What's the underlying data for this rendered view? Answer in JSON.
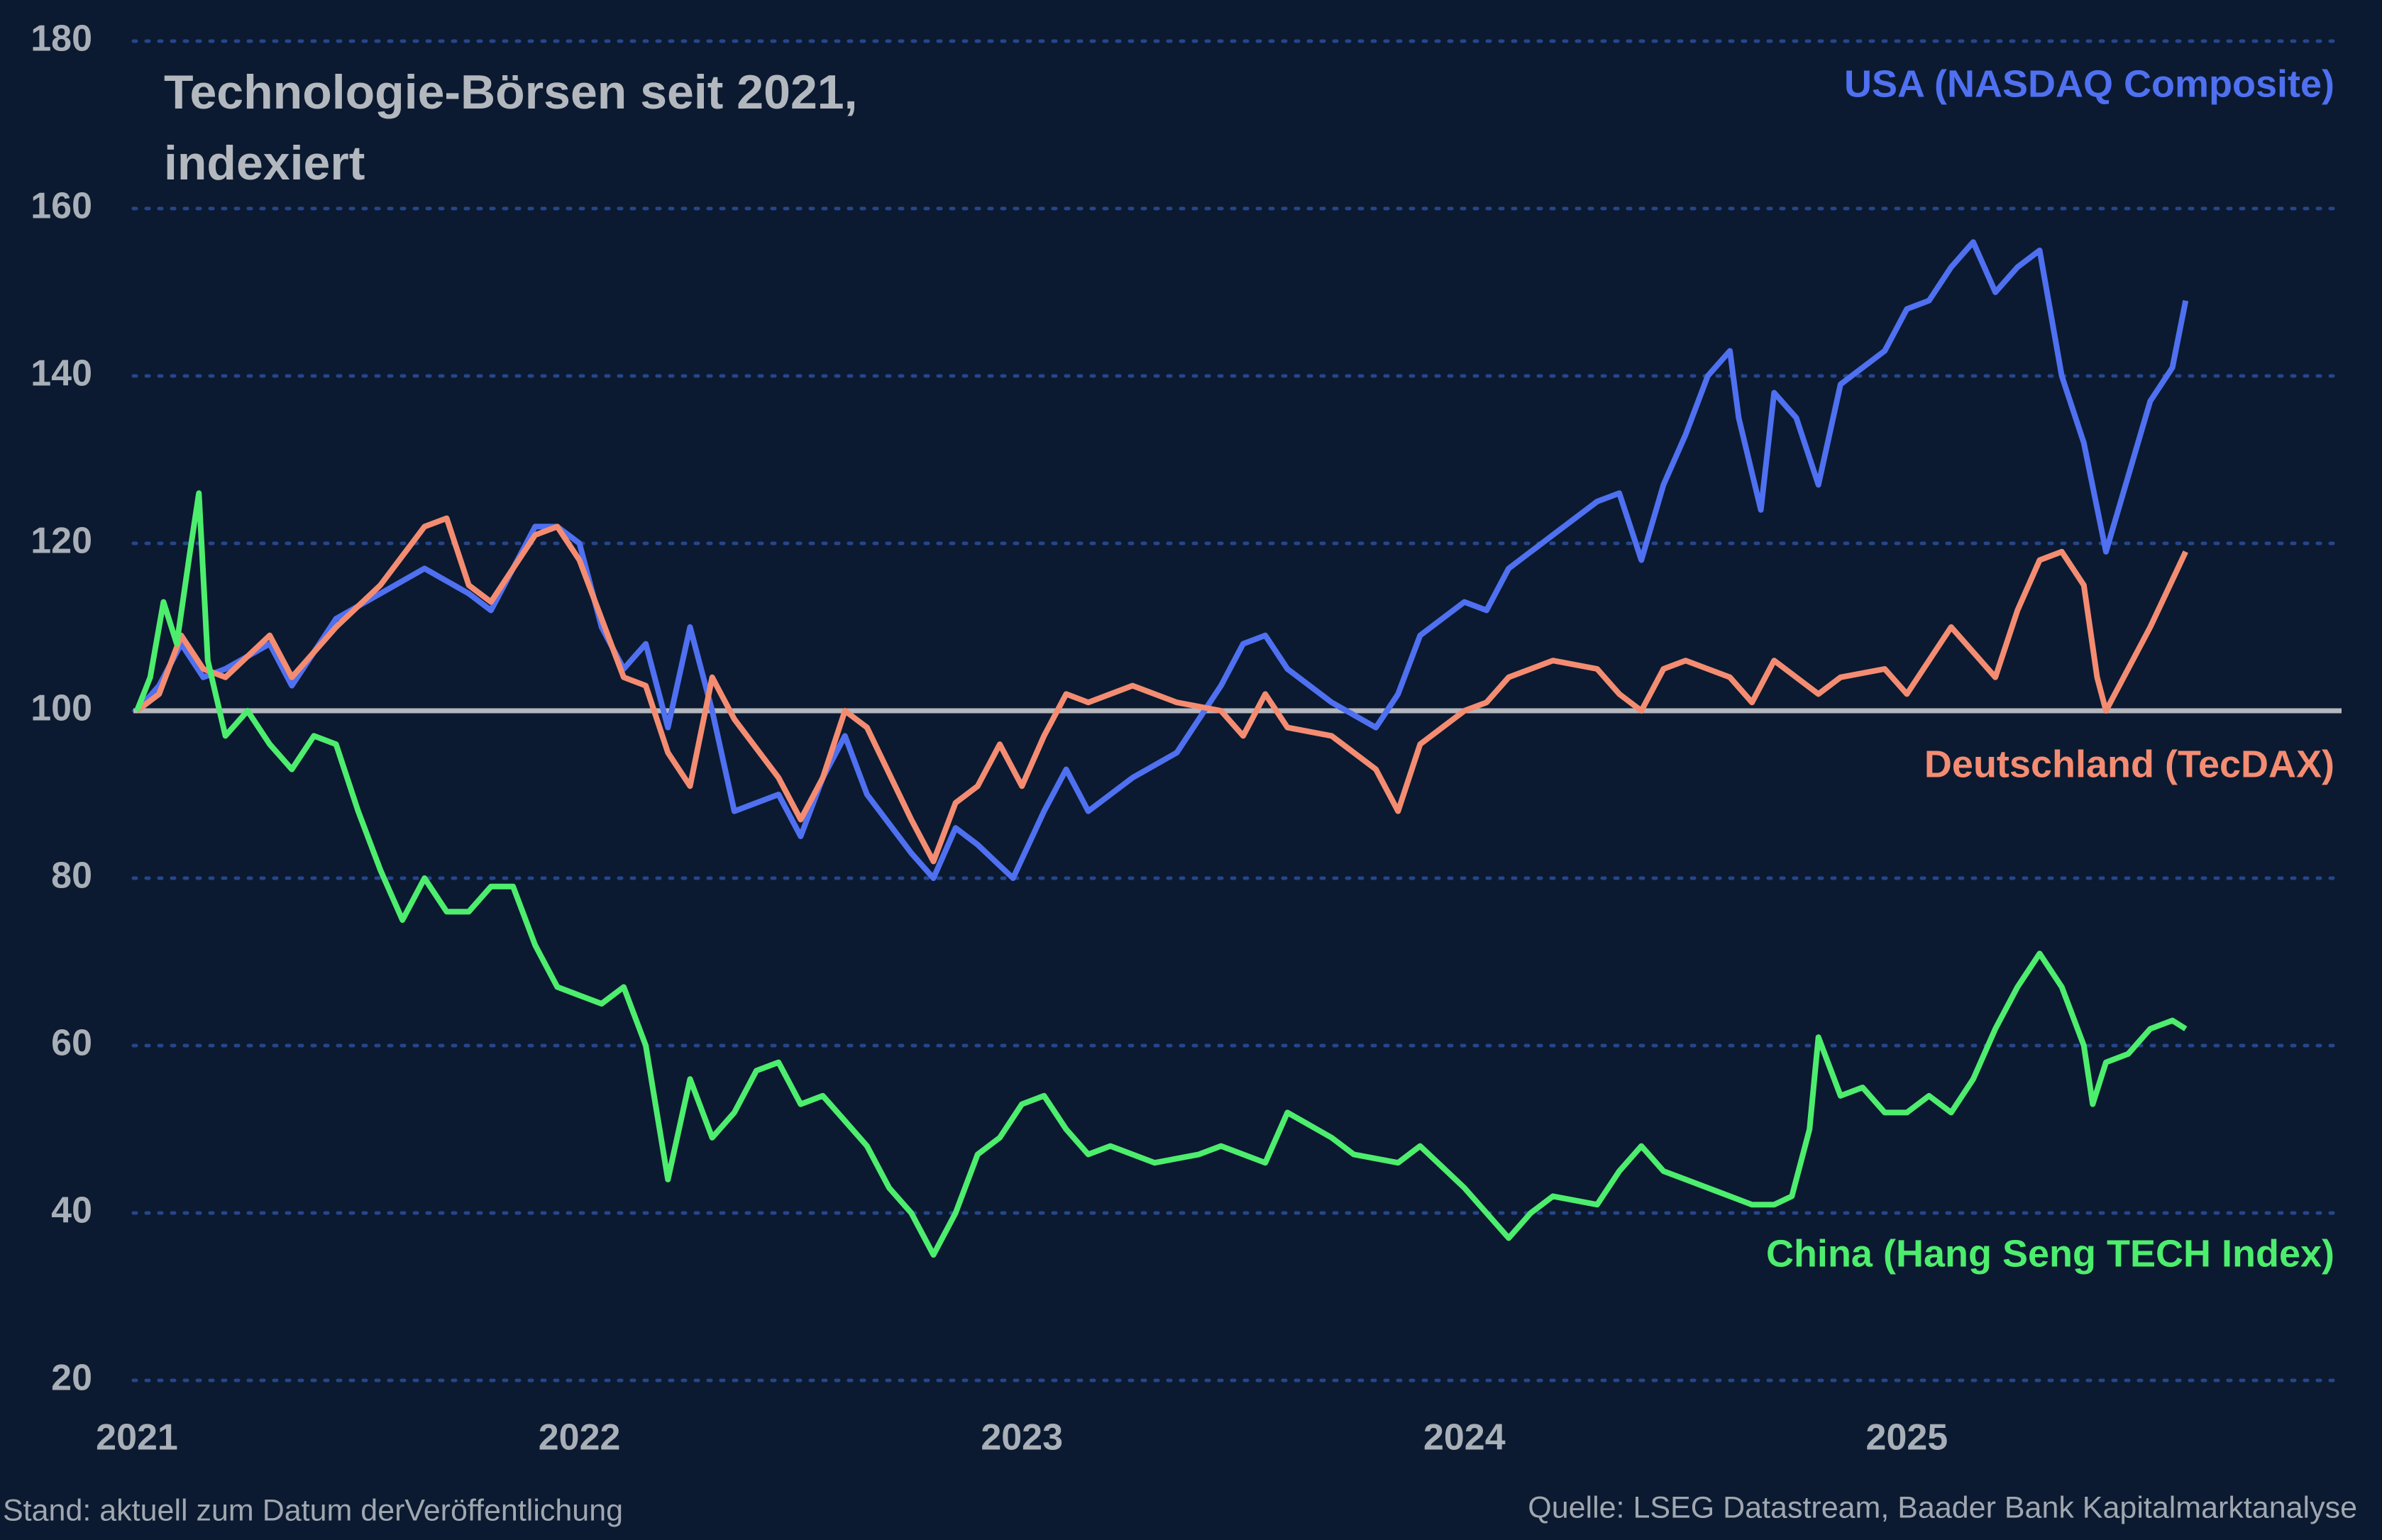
{
  "chart_data": {
    "type": "line",
    "title": "Technologie-Börsen seit 2021, indexiert",
    "note": "Stand: aktuell zum Datum derVeröffentlichung",
    "source": "Quelle: LSEG Datastream, Baader Bank Kapitalmarktanalyse",
    "xlim": [
      2021,
      2026
    ],
    "xticks": [
      2021,
      2022,
      2023,
      2024,
      2025
    ],
    "ylim": [
      20,
      180
    ],
    "yticks": [
      20,
      40,
      60,
      80,
      100,
      120,
      140,
      160,
      180
    ],
    "grid": true,
    "baseline": 100,
    "baseline_color": "#b4b8be",
    "series": [
      {
        "name": "USA (NASDAQ Composite)",
        "color": "#4f70f0",
        "x": [
          2021.0,
          2021.05,
          2021.1,
          2021.15,
          2021.2,
          2021.3,
          2021.35,
          2021.45,
          2021.55,
          2021.65,
          2021.75,
          2021.8,
          2021.9,
          2021.95,
          2022.0,
          2022.05,
          2022.1,
          2022.15,
          2022.2,
          2022.25,
          2022.3,
          2022.35,
          2022.45,
          2022.5,
          2022.55,
          2022.6,
          2022.65,
          2022.75,
          2022.8,
          2022.85,
          2022.9,
          2022.98,
          2023.05,
          2023.1,
          2023.15,
          2023.25,
          2023.35,
          2023.45,
          2023.5,
          2023.55,
          2023.6,
          2023.7,
          2023.8,
          2023.85,
          2023.9,
          2024.0,
          2024.05,
          2024.1,
          2024.2,
          2024.3,
          2024.35,
          2024.4,
          2024.45,
          2024.5,
          2024.55,
          2024.6,
          2024.62,
          2024.67,
          2024.7,
          2024.75,
          2024.8,
          2024.85,
          2024.95,
          2025.0,
          2025.05,
          2025.1,
          2025.15,
          2025.2,
          2025.25,
          2025.3,
          2025.35,
          2025.4,
          2025.45,
          2025.5,
          2025.55,
          2025.6,
          2025.63
        ],
        "values": [
          100,
          103,
          108,
          104,
          105,
          108,
          103,
          111,
          114,
          117,
          114,
          112,
          122,
          122,
          120,
          110,
          105,
          108,
          98,
          110,
          100,
          88,
          90,
          85,
          92,
          97,
          90,
          83,
          80,
          86,
          84,
          80,
          88,
          93,
          88,
          92,
          95,
          103,
          108,
          109,
          105,
          101,
          98,
          102,
          109,
          113,
          112,
          117,
          121,
          125,
          126,
          118,
          127,
          133,
          140,
          143,
          135,
          124,
          138,
          135,
          127,
          139,
          143,
          148,
          149,
          153,
          156,
          150,
          153,
          155,
          140,
          132,
          119,
          128,
          137,
          141,
          149
        ]
      },
      {
        "name": "Deutschland (TecDAX)",
        "color": "#f48c72",
        "x": [
          2021.0,
          2021.05,
          2021.1,
          2021.15,
          2021.2,
          2021.3,
          2021.35,
          2021.45,
          2021.55,
          2021.65,
          2021.7,
          2021.75,
          2021.8,
          2021.9,
          2021.95,
          2022.0,
          2022.05,
          2022.1,
          2022.15,
          2022.2,
          2022.25,
          2022.3,
          2022.35,
          2022.45,
          2022.5,
          2022.55,
          2022.6,
          2022.65,
          2022.75,
          2022.8,
          2022.85,
          2022.9,
          2022.95,
          2023.0,
          2023.05,
          2023.1,
          2023.15,
          2023.25,
          2023.35,
          2023.45,
          2023.5,
          2023.55,
          2023.6,
          2023.7,
          2023.8,
          2023.85,
          2023.9,
          2024.0,
          2024.05,
          2024.1,
          2024.2,
          2024.3,
          2024.35,
          2024.4,
          2024.45,
          2024.5,
          2024.6,
          2024.65,
          2024.7,
          2024.8,
          2024.85,
          2024.95,
          2025.0,
          2025.05,
          2025.1,
          2025.2,
          2025.25,
          2025.3,
          2025.35,
          2025.4,
          2025.43,
          2025.45,
          2025.5,
          2025.55,
          2025.63
        ],
        "values": [
          100,
          102,
          109,
          105,
          104,
          109,
          104,
          110,
          115,
          122,
          123,
          115,
          113,
          121,
          122,
          118,
          111,
          104,
          103,
          95,
          91,
          104,
          99,
          92,
          87,
          92,
          100,
          98,
          87,
          82,
          89,
          91,
          96,
          91,
          97,
          102,
          101,
          103,
          101,
          100,
          97,
          102,
          98,
          97,
          93,
          88,
          96,
          100,
          101,
          104,
          106,
          105,
          102,
          100,
          105,
          106,
          104,
          101,
          106,
          102,
          104,
          105,
          102,
          106,
          110,
          104,
          112,
          118,
          119,
          115,
          104,
          100,
          105,
          110,
          119
        ]
      },
      {
        "name": "China (Hang Seng TECH Index)",
        "color": "#4ded6e",
        "x": [
          2021.0,
          2021.03,
          2021.06,
          2021.09,
          2021.12,
          2021.14,
          2021.16,
          2021.2,
          2021.25,
          2021.3,
          2021.35,
          2021.4,
          2021.45,
          2021.5,
          2021.55,
          2021.6,
          2021.65,
          2021.7,
          2021.75,
          2021.8,
          2021.85,
          2021.9,
          2021.95,
          2022.0,
          2022.05,
          2022.1,
          2022.15,
          2022.2,
          2022.25,
          2022.3,
          2022.35,
          2022.4,
          2022.45,
          2022.5,
          2022.55,
          2022.6,
          2022.65,
          2022.7,
          2022.75,
          2022.8,
          2022.85,
          2022.9,
          2022.95,
          2023.0,
          2023.05,
          2023.1,
          2023.15,
          2023.2,
          2023.3,
          2023.4,
          2023.45,
          2023.55,
          2023.6,
          2023.7,
          2023.75,
          2023.85,
          2023.9,
          2024.0,
          2024.05,
          2024.1,
          2024.15,
          2024.2,
          2024.3,
          2024.35,
          2024.4,
          2024.45,
          2024.5,
          2024.6,
          2024.65,
          2024.7,
          2024.74,
          2024.78,
          2024.8,
          2024.85,
          2024.9,
          2024.95,
          2025.0,
          2025.05,
          2025.1,
          2025.15,
          2025.2,
          2025.25,
          2025.3,
          2025.35,
          2025.4,
          2025.42,
          2025.45,
          2025.5,
          2025.55,
          2025.6,
          2025.63
        ],
        "values": [
          100,
          104,
          113,
          108,
          119,
          126,
          106,
          97,
          100,
          96,
          93,
          97,
          96,
          88,
          81,
          75,
          80,
          76,
          76,
          79,
          79,
          72,
          67,
          66,
          65,
          67,
          60,
          44,
          56,
          49,
          52,
          57,
          58,
          53,
          54,
          51,
          48,
          43,
          40,
          35,
          40,
          47,
          49,
          53,
          54,
          50,
          47,
          48,
          46,
          47,
          48,
          46,
          52,
          49,
          47,
          46,
          48,
          43,
          40,
          37,
          40,
          42,
          41,
          45,
          48,
          45,
          44,
          42,
          41,
          41,
          42,
          50,
          61,
          54,
          55,
          52,
          52,
          54,
          52,
          56,
          62,
          67,
          71,
          67,
          60,
          53,
          58,
          59,
          62,
          63,
          62
        ]
      }
    ]
  }
}
